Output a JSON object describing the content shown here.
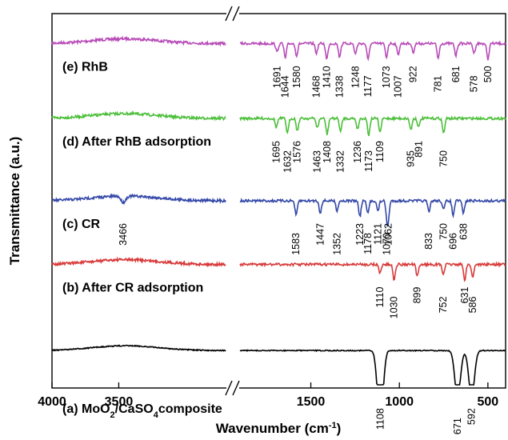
{
  "chart_data": {
    "type": "line",
    "xlabel": "Wavenumber (cm",
    "xlabel_sup": "-1",
    "xlabel_tail": ")",
    "ylabel": "Transmittance (a.u.)",
    "x_axis_reversed": true,
    "x_axis_broken": true,
    "x_segments": [
      {
        "range": [
          4000,
          2700
        ],
        "ticks": [
          4000,
          3500
        ]
      },
      {
        "range": [
          1900,
          400
        ],
        "ticks": [
          1500,
          1000,
          500
        ]
      }
    ],
    "tick_labels": [
      "4000",
      "3500",
      "1500",
      "1000",
      "500"
    ],
    "series": [
      {
        "name": "(e) RhB",
        "label_parts": [
          "(e) RhB"
        ],
        "color": "#b84cb8",
        "offset": 0.92,
        "peaks": [
          "1691",
          "1644",
          "1580",
          "1468",
          "1410",
          "1338",
          "1248",
          "1177",
          "1073",
          "1007",
          "922",
          "781",
          "681",
          "578",
          "500"
        ],
        "peak_positions": [
          1691,
          1644,
          1580,
          1468,
          1410,
          1338,
          1248,
          1177,
          1073,
          1007,
          922,
          781,
          681,
          578,
          500
        ]
      },
      {
        "name": "(d) After RhB adsorption",
        "label_parts": [
          "(d) After RhB adsorption"
        ],
        "color": "#4cbf3a",
        "offset": 0.72,
        "peaks": [
          "1695",
          "1632",
          "1576",
          "1463",
          "1408",
          "1332",
          "1236",
          "1173",
          "1109",
          "935",
          "891",
          "750"
        ],
        "peak_positions": [
          1695,
          1632,
          1576,
          1463,
          1408,
          1332,
          1236,
          1173,
          1109,
          935,
          891,
          750
        ]
      },
      {
        "name": "(c) CR",
        "label_parts": [
          "(c) CR"
        ],
        "color": "#3347a8",
        "offset": 0.5,
        "peaks": [
          "3466",
          "1583",
          "1447",
          "1352",
          "1223",
          "1178",
          "1121",
          "1070",
          "1062",
          "833",
          "750",
          "696",
          "638"
        ],
        "peak_positions": [
          3466,
          1583,
          1447,
          1352,
          1223,
          1178,
          1121,
          1070,
          1062,
          833,
          750,
          696,
          638
        ]
      },
      {
        "name": "(b) After CR adsorption",
        "label_parts": [
          "(b) After CR adsorption"
        ],
        "color": "#d83a3a",
        "offset": 0.33,
        "peaks": [
          "1110",
          "1030",
          "899",
          "752",
          "631",
          "586"
        ],
        "peak_positions": [
          1110,
          1030,
          899,
          752,
          631,
          586
        ]
      },
      {
        "name": "(a) MoO2/CaSO4 composite",
        "label_parts": [
          "(a) MoO",
          "2",
          "/CaSO",
          "4",
          "composite"
        ],
        "color": "#000000",
        "offset": 0.1,
        "peaks": [
          "1108",
          "671",
          "592"
        ],
        "peak_positions": [
          1108,
          671,
          592
        ]
      }
    ]
  }
}
